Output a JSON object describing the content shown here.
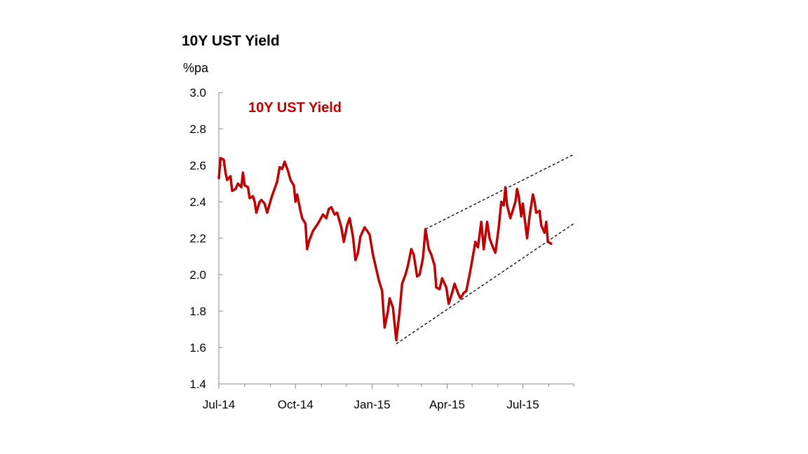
{
  "chart_data": {
    "type": "line",
    "title": "10Y UST Yield",
    "ylabel": "%pa",
    "ylim": [
      1.4,
      3.0
    ],
    "y_ticks": [
      "1.4",
      "1.6",
      "1.8",
      "2.0",
      "2.2",
      "2.4",
      "2.6",
      "2.8",
      "3.0"
    ],
    "x_ticks": [
      "Jul-14",
      "Oct-14",
      "Jan-15",
      "Apr-15",
      "Jul-15"
    ],
    "x_range": [
      "2014-07-01",
      "2015-08-31"
    ],
    "grid": false,
    "annotation": "10Y UST Yield",
    "series": [
      {
        "name": "10Y UST Yield",
        "color": "#c00000",
        "points": [
          [
            "2014-07-01",
            2.53
          ],
          [
            "2014-07-03",
            2.64
          ],
          [
            "2014-07-07",
            2.63
          ],
          [
            "2014-07-09",
            2.56
          ],
          [
            "2014-07-11",
            2.52
          ],
          [
            "2014-07-15",
            2.54
          ],
          [
            "2014-07-17",
            2.46
          ],
          [
            "2014-07-21",
            2.47
          ],
          [
            "2014-07-24",
            2.5
          ],
          [
            "2014-07-28",
            2.48
          ],
          [
            "2014-07-30",
            2.56
          ],
          [
            "2014-08-01",
            2.49
          ],
          [
            "2014-08-05",
            2.48
          ],
          [
            "2014-08-07",
            2.42
          ],
          [
            "2014-08-11",
            2.43
          ],
          [
            "2014-08-13",
            2.4
          ],
          [
            "2014-08-15",
            2.34
          ],
          [
            "2014-08-19",
            2.4
          ],
          [
            "2014-08-21",
            2.41
          ],
          [
            "2014-08-25",
            2.39
          ],
          [
            "2014-08-28",
            2.34
          ],
          [
            "2014-09-02",
            2.42
          ],
          [
            "2014-09-05",
            2.46
          ],
          [
            "2014-09-09",
            2.51
          ],
          [
            "2014-09-12",
            2.59
          ],
          [
            "2014-09-15",
            2.58
          ],
          [
            "2014-09-18",
            2.62
          ],
          [
            "2014-09-22",
            2.57
          ],
          [
            "2014-09-25",
            2.52
          ],
          [
            "2014-09-29",
            2.49
          ],
          [
            "2014-10-01",
            2.4
          ],
          [
            "2014-10-03",
            2.44
          ],
          [
            "2014-10-07",
            2.35
          ],
          [
            "2014-10-09",
            2.31
          ],
          [
            "2014-10-13",
            2.28
          ],
          [
            "2014-10-15",
            2.14
          ],
          [
            "2014-10-17",
            2.18
          ],
          [
            "2014-10-22",
            2.24
          ],
          [
            "2014-10-28",
            2.28
          ],
          [
            "2014-11-03",
            2.33
          ],
          [
            "2014-11-07",
            2.31
          ],
          [
            "2014-11-10",
            2.36
          ],
          [
            "2014-11-13",
            2.37
          ],
          [
            "2014-11-17",
            2.33
          ],
          [
            "2014-11-20",
            2.34
          ],
          [
            "2014-11-25",
            2.26
          ],
          [
            "2014-11-28",
            2.18
          ],
          [
            "2014-12-02",
            2.27
          ],
          [
            "2014-12-05",
            2.31
          ],
          [
            "2014-12-09",
            2.21
          ],
          [
            "2014-12-12",
            2.08
          ],
          [
            "2014-12-15",
            2.12
          ],
          [
            "2014-12-18",
            2.21
          ],
          [
            "2014-12-23",
            2.26
          ],
          [
            "2014-12-29",
            2.22
          ],
          [
            "2015-01-02",
            2.11
          ],
          [
            "2015-01-06",
            2.03
          ],
          [
            "2015-01-09",
            1.97
          ],
          [
            "2015-01-13",
            1.91
          ],
          [
            "2015-01-15",
            1.77
          ],
          [
            "2015-01-16",
            1.71
          ],
          [
            "2015-01-20",
            1.8
          ],
          [
            "2015-01-22",
            1.87
          ],
          [
            "2015-01-26",
            1.82
          ],
          [
            "2015-01-28",
            1.73
          ],
          [
            "2015-01-30",
            1.64
          ],
          [
            "2015-02-03",
            1.8
          ],
          [
            "2015-02-06",
            1.95
          ],
          [
            "2015-02-10",
            2.0
          ],
          [
            "2015-02-13",
            2.05
          ],
          [
            "2015-02-17",
            2.14
          ],
          [
            "2015-02-20",
            2.11
          ],
          [
            "2015-02-24",
            1.99
          ],
          [
            "2015-02-27",
            2.0
          ],
          [
            "2015-03-03",
            2.09
          ],
          [
            "2015-03-06",
            2.25
          ],
          [
            "2015-03-10",
            2.14
          ],
          [
            "2015-03-13",
            2.11
          ],
          [
            "2015-03-17",
            2.05
          ],
          [
            "2015-03-19",
            1.93
          ],
          [
            "2015-03-23",
            1.92
          ],
          [
            "2015-03-26",
            1.98
          ],
          [
            "2015-03-31",
            1.93
          ],
          [
            "2015-04-03",
            1.84
          ],
          [
            "2015-04-07",
            1.9
          ],
          [
            "2015-04-10",
            1.95
          ],
          [
            "2015-04-14",
            1.9
          ],
          [
            "2015-04-17",
            1.87
          ],
          [
            "2015-04-21",
            1.9
          ],
          [
            "2015-04-24",
            1.91
          ],
          [
            "2015-04-28",
            2.0
          ],
          [
            "2015-04-30",
            2.05
          ],
          [
            "2015-05-05",
            2.18
          ],
          [
            "2015-05-08",
            2.15
          ],
          [
            "2015-05-12",
            2.29
          ],
          [
            "2015-05-15",
            2.14
          ],
          [
            "2015-05-19",
            2.29
          ],
          [
            "2015-05-22",
            2.2
          ],
          [
            "2015-05-26",
            2.15
          ],
          [
            "2015-05-29",
            2.12
          ],
          [
            "2015-06-02",
            2.26
          ],
          [
            "2015-06-05",
            2.4
          ],
          [
            "2015-06-08",
            2.38
          ],
          [
            "2015-06-10",
            2.48
          ],
          [
            "2015-06-12",
            2.38
          ],
          [
            "2015-06-16",
            2.31
          ],
          [
            "2015-06-18",
            2.34
          ],
          [
            "2015-06-22",
            2.4
          ],
          [
            "2015-06-24",
            2.47
          ],
          [
            "2015-06-26",
            2.43
          ],
          [
            "2015-06-29",
            2.32
          ],
          [
            "2015-07-01",
            2.39
          ],
          [
            "2015-07-06",
            2.2
          ],
          [
            "2015-07-09",
            2.32
          ],
          [
            "2015-07-13",
            2.44
          ],
          [
            "2015-07-15",
            2.4
          ],
          [
            "2015-07-17",
            2.34
          ],
          [
            "2015-07-21",
            2.35
          ],
          [
            "2015-07-23",
            2.27
          ],
          [
            "2015-07-27",
            2.23
          ],
          [
            "2015-07-29",
            2.29
          ],
          [
            "2015-07-31",
            2.18
          ],
          [
            "2015-08-04",
            2.17
          ]
        ]
      }
    ],
    "trendlines": [
      {
        "name": "upper channel",
        "style": "dashed",
        "color": "#000000",
        "start": [
          "2015-03-06",
          2.25
        ],
        "end": [
          "2015-08-31",
          2.66
        ]
      },
      {
        "name": "lower channel",
        "style": "dashed",
        "color": "#000000",
        "start": [
          "2015-01-30",
          1.62
        ],
        "end": [
          "2015-08-31",
          2.28
        ]
      }
    ]
  }
}
